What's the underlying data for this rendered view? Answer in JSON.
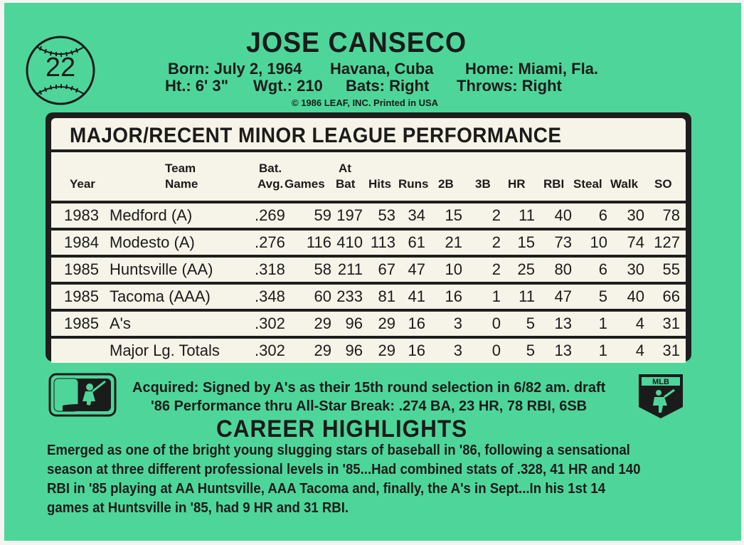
{
  "card": {
    "number": "22",
    "player_name": "JOSE CANSECO",
    "bio": {
      "born": "Born: July 2, 1964",
      "birthplace": "Havana, Cuba",
      "home": "Home: Miami, Fla.",
      "height": "Ht.: 6' 3\"",
      "weight": "Wgt.: 210",
      "bats": "Bats: Right",
      "throws": "Throws: Right"
    },
    "copyright": "© 1986 LEAF, INC. Printed in USA"
  },
  "stats": {
    "title": "MAJOR/RECENT MINOR LEAGUE PERFORMANCE",
    "headers": {
      "year": "Year",
      "team_1": "Team",
      "team_2": "Name",
      "bat_1": "Bat.",
      "bat_2": "Avg.",
      "games": "Games",
      "atbat_1": "At",
      "atbat_2": "Bat",
      "hits": "Hits",
      "runs": "Runs",
      "doubles": "2B",
      "triples": "3B",
      "hr": "HR",
      "rbi": "RBI",
      "steal": "Steal",
      "walk": "Walk",
      "so": "SO"
    },
    "rows": [
      {
        "year": "1983",
        "team": "Medford (A)",
        "avg": ".269",
        "games": "59",
        "atbat": "197",
        "hits": "53",
        "runs": "34",
        "doubles": "15",
        "triples": "2",
        "hr": "11",
        "rbi": "40",
        "steal": "6",
        "walk": "30",
        "so": "78"
      },
      {
        "year": "1984",
        "team": "Modesto (A)",
        "avg": ".276",
        "games": "116",
        "atbat": "410",
        "hits": "113",
        "runs": "61",
        "doubles": "21",
        "triples": "2",
        "hr": "15",
        "rbi": "73",
        "steal": "10",
        "walk": "74",
        "so": "127"
      },
      {
        "year": "1985",
        "team": "Huntsville (AA)",
        "avg": ".318",
        "games": "58",
        "atbat": "211",
        "hits": "67",
        "runs": "47",
        "doubles": "10",
        "triples": "2",
        "hr": "25",
        "rbi": "80",
        "steal": "6",
        "walk": "30",
        "so": "55"
      },
      {
        "year": "1985",
        "team": "Tacoma (AAA)",
        "avg": ".348",
        "games": "60",
        "atbat": "233",
        "hits": "81",
        "runs": "41",
        "doubles": "16",
        "triples": "1",
        "hr": "11",
        "rbi": "47",
        "steal": "5",
        "walk": "40",
        "so": "66"
      },
      {
        "year": "1985",
        "team": "A's",
        "avg": ".302",
        "games": "29",
        "atbat": "96",
        "hits": "29",
        "runs": "16",
        "doubles": "3",
        "triples": "0",
        "hr": "5",
        "rbi": "13",
        "steal": "1",
        "walk": "4",
        "so": "31"
      }
    ],
    "totals": {
      "label": "Major Lg. Totals",
      "avg": ".302",
      "games": "29",
      "atbat": "96",
      "hits": "29",
      "runs": "16",
      "doubles": "3",
      "triples": "0",
      "hr": "5",
      "rbi": "13",
      "steal": "1",
      "walk": "4",
      "so": "31"
    }
  },
  "acquired": "Acquired: Signed by A's as their 15th round selection in 6/82 am. draft",
  "performance_86": "'86 Performance thru All-Star Break: .274 BA, 23 HR, 78 RBI, 6SB",
  "highlights": {
    "title": "CAREER HIGHLIGHTS",
    "lines": [
      "Emerged as one of the bright young slugging stars of baseball in '86, following a sensational",
      "season at three different professional levels in '85...Had combined stats of .328, 41 HR and 140",
      "RBI in '85 playing at AA Huntsville, AAA Tacoma and, finally, the A's in Sept...In his 1st 14",
      "games at Huntsville in '85, had 9 HR and 31 RBI."
    ]
  },
  "logos": {
    "mlb_logo": "mlb-logo-icon",
    "mlbpa_logo": "mlbpa-logo-icon",
    "mlbpa_text": "MLB"
  },
  "colors": {
    "card_green": "#4ed69a",
    "panel_cream": "#f6f3e8",
    "ink": "#1b1b1b"
  }
}
